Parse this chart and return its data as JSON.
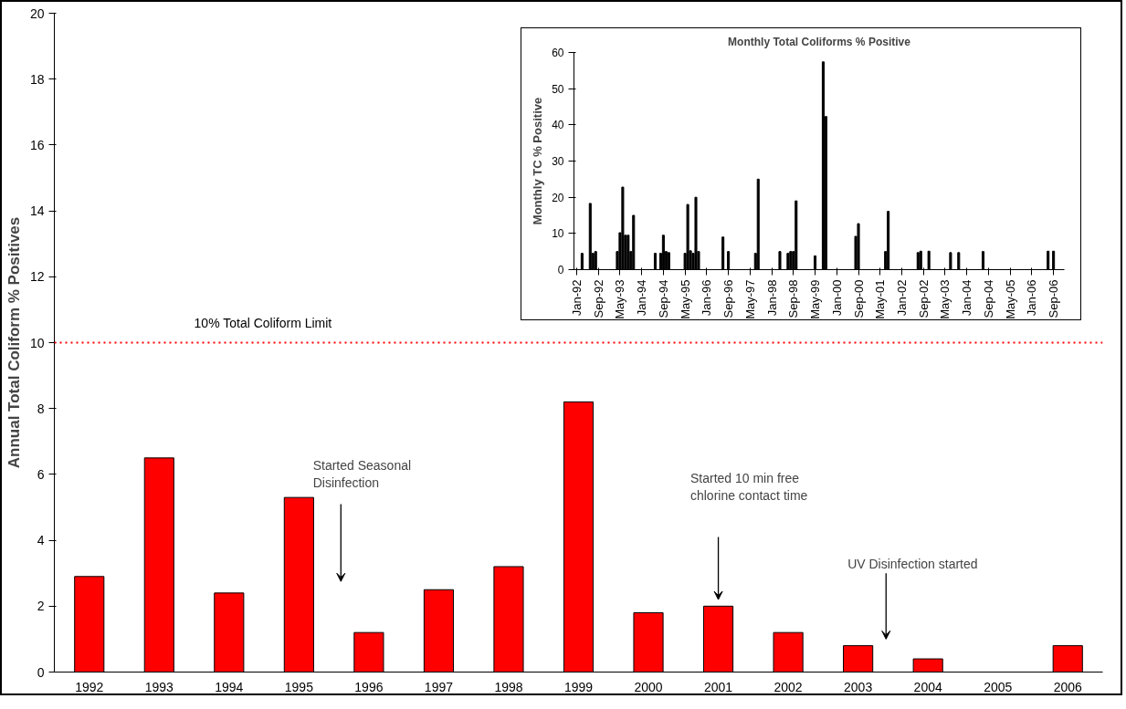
{
  "chart_data": [
    {
      "type": "bar",
      "ylabel": "Annual Total Coliform % Positives",
      "categories": [
        "1992",
        "1993",
        "1994",
        "1995",
        "1996",
        "1997",
        "1998",
        "1999",
        "2000",
        "2001",
        "2002",
        "2003",
        "2004",
        "2005",
        "2006"
      ],
      "values": [
        2.9,
        6.5,
        2.4,
        5.3,
        1.2,
        2.5,
        3.2,
        8.2,
        1.8,
        2.0,
        1.2,
        0.8,
        0.4,
        0,
        0.8
      ],
      "color": "#ff0000",
      "ylim": [
        0,
        20
      ],
      "yticks": [
        0,
        2,
        4,
        6,
        8,
        10,
        12,
        14,
        16,
        18,
        20
      ],
      "ref_lines": [
        {
          "axis": "y",
          "value": 10,
          "label": "10% Total Coliform Limit",
          "color": "#ff0000",
          "line_style": "dotted"
        }
      ],
      "annotations": [
        "Started Seasonal\nDisinfection",
        "Started 10 min free\nchlorine contact time",
        "UV Disinfection started"
      ],
      "grid": false
    },
    {
      "type": "bar",
      "title": "Monthly Total Coliforms % Positive",
      "ylabel": "Monthly TC % Positive",
      "x": [
        "1992-03",
        "1992-06",
        "1992-07",
        "1992-08",
        "1993-04",
        "1993-05",
        "1993-06",
        "1993-07",
        "1993-08",
        "1993-09",
        "1993-10",
        "1994-06",
        "1994-08",
        "1994-09",
        "1994-10",
        "1994-11",
        "1995-05",
        "1995-06",
        "1995-07",
        "1995-08",
        "1995-09",
        "1995-10",
        "1996-07",
        "1996-09",
        "1997-07",
        "1997-08",
        "1998-04",
        "1998-07",
        "1998-08",
        "1998-09",
        "1998-10",
        "1999-05",
        "1999-08",
        "1999-09",
        "2000-08",
        "2000-09",
        "2001-07",
        "2001-08",
        "2002-07",
        "2002-08",
        "2002-11",
        "2003-07",
        "2003-10",
        "2004-07",
        "2006-07",
        "2006-09"
      ],
      "values": [
        4.5,
        18.3,
        4.5,
        5,
        5,
        10.2,
        22.8,
        9.5,
        9.5,
        5,
        15,
        4.5,
        4.5,
        9.5,
        5,
        4.7,
        4.5,
        18,
        5.2,
        4.5,
        20,
        5,
        9,
        5,
        4.5,
        25,
        5,
        4.5,
        5,
        5,
        19,
        3.8,
        57.4,
        42.3,
        9.2,
        12.7,
        5,
        16.1,
        4.7,
        5.1,
        5.1,
        4.7,
        4.7,
        5,
        5.1,
        5.1
      ],
      "color": "#000000",
      "xlim": [
        "1991-12",
        "2007-01"
      ],
      "xticks": [
        {
          "value": "1992-01",
          "label": "Jan-92"
        },
        {
          "value": "1992-09",
          "label": "Sep-92"
        },
        {
          "value": "1993-05",
          "label": "May-93"
        },
        {
          "value": "1994-01",
          "label": "Jan-94"
        },
        {
          "value": "1994-09",
          "label": "Sep-94"
        },
        {
          "value": "1995-05",
          "label": "May-95"
        },
        {
          "value": "1996-01",
          "label": "Jan-96"
        },
        {
          "value": "1996-09",
          "label": "Sep-96"
        },
        {
          "value": "1997-05",
          "label": "May-97"
        },
        {
          "value": "1998-01",
          "label": "Jan-98"
        },
        {
          "value": "1998-09",
          "label": "Sep-98"
        },
        {
          "value": "1999-05",
          "label": "May-99"
        },
        {
          "value": "2000-01",
          "label": "Jan-00"
        },
        {
          "value": "2000-09",
          "label": "Sep-00"
        },
        {
          "value": "2001-05",
          "label": "May-01"
        },
        {
          "value": "2002-01",
          "label": "Jan-02"
        },
        {
          "value": "2002-09",
          "label": "Sep-02"
        },
        {
          "value": "2003-05",
          "label": "May-03"
        },
        {
          "value": "2004-01",
          "label": "Jan-04"
        },
        {
          "value": "2004-09",
          "label": "Sep-04"
        },
        {
          "value": "2005-05",
          "label": "May-05"
        },
        {
          "value": "2006-01",
          "label": "Jan-06"
        },
        {
          "value": "2006-09",
          "label": "Sep-06"
        }
      ],
      "ylim": [
        0,
        60
      ],
      "yticks": [
        0,
        10,
        20,
        30,
        40,
        50,
        60
      ],
      "grid": false
    }
  ]
}
